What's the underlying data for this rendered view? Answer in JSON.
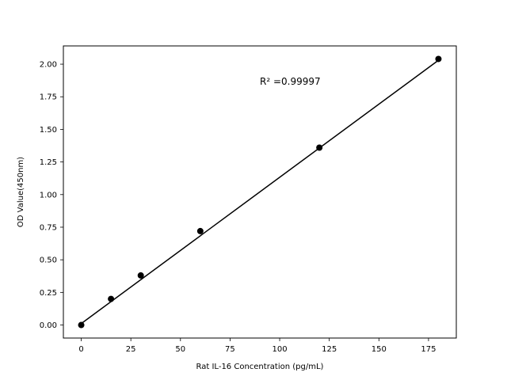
{
  "chart_data": {
    "type": "scatter",
    "title": "",
    "xlabel": "Rat IL-16 Concentration (pg/mL)",
    "ylabel": "OD Value(450nm)",
    "xlim": [
      -9,
      189
    ],
    "ylim": [
      -0.1,
      2.14
    ],
    "x_ticks": [
      0,
      25,
      50,
      75,
      100,
      125,
      150,
      175
    ],
    "y_ticks": [
      0.0,
      0.25,
      0.5,
      0.75,
      1.0,
      1.25,
      1.5,
      1.75,
      2.0
    ],
    "x_tick_labels": [
      "0",
      "25",
      "50",
      "75",
      "100",
      "125",
      "150",
      "175"
    ],
    "y_tick_labels": [
      "0.00",
      "0.25",
      "0.50",
      "0.75",
      "1.00",
      "1.25",
      "1.50",
      "1.75",
      "2.00"
    ],
    "grid": false,
    "series": [
      {
        "color": "#000000",
        "marker": "circle",
        "line": true,
        "x": [
          0,
          15,
          30,
          60,
          120,
          180
        ],
        "y": [
          0.0,
          0.2,
          0.38,
          0.72,
          1.36,
          2.04
        ]
      }
    ],
    "fit_line": {
      "color": "#000000",
      "x": [
        0,
        180
      ],
      "y": [
        0.011,
        2.03
      ]
    },
    "annotation": "R² =0.99997"
  }
}
